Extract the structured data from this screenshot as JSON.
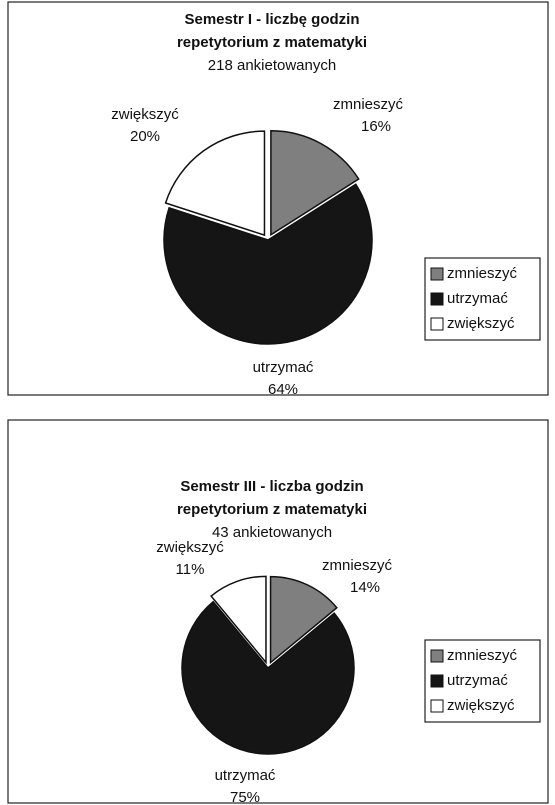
{
  "chart_data": [
    {
      "type": "pie",
      "title": [
        "Semestr I - liczbę godzin",
        "repetytorium z matematyki"
      ],
      "subtitle": "218 ankietowanych",
      "categories": [
        "zmnieszyć",
        "utrzymać",
        "zwiększyć"
      ],
      "values": [
        16,
        64,
        20
      ],
      "value_labels": [
        "16%",
        "64%",
        "20%"
      ],
      "colors": [
        "#7f7f7f",
        "#151515",
        "#ffffff"
      ],
      "legend": "right"
    },
    {
      "type": "pie",
      "title": [
        "Semestr III - liczba godzin",
        "repetytorium z matematyki"
      ],
      "subtitle": "43 ankietowanych",
      "categories": [
        "zmnieszyć",
        "utrzymać",
        "zwiększyć"
      ],
      "values": [
        14,
        75,
        11
      ],
      "value_labels": [
        "14%",
        "75%",
        "11%"
      ],
      "colors": [
        "#7f7f7f",
        "#151515",
        "#ffffff"
      ],
      "legend": "right"
    }
  ]
}
